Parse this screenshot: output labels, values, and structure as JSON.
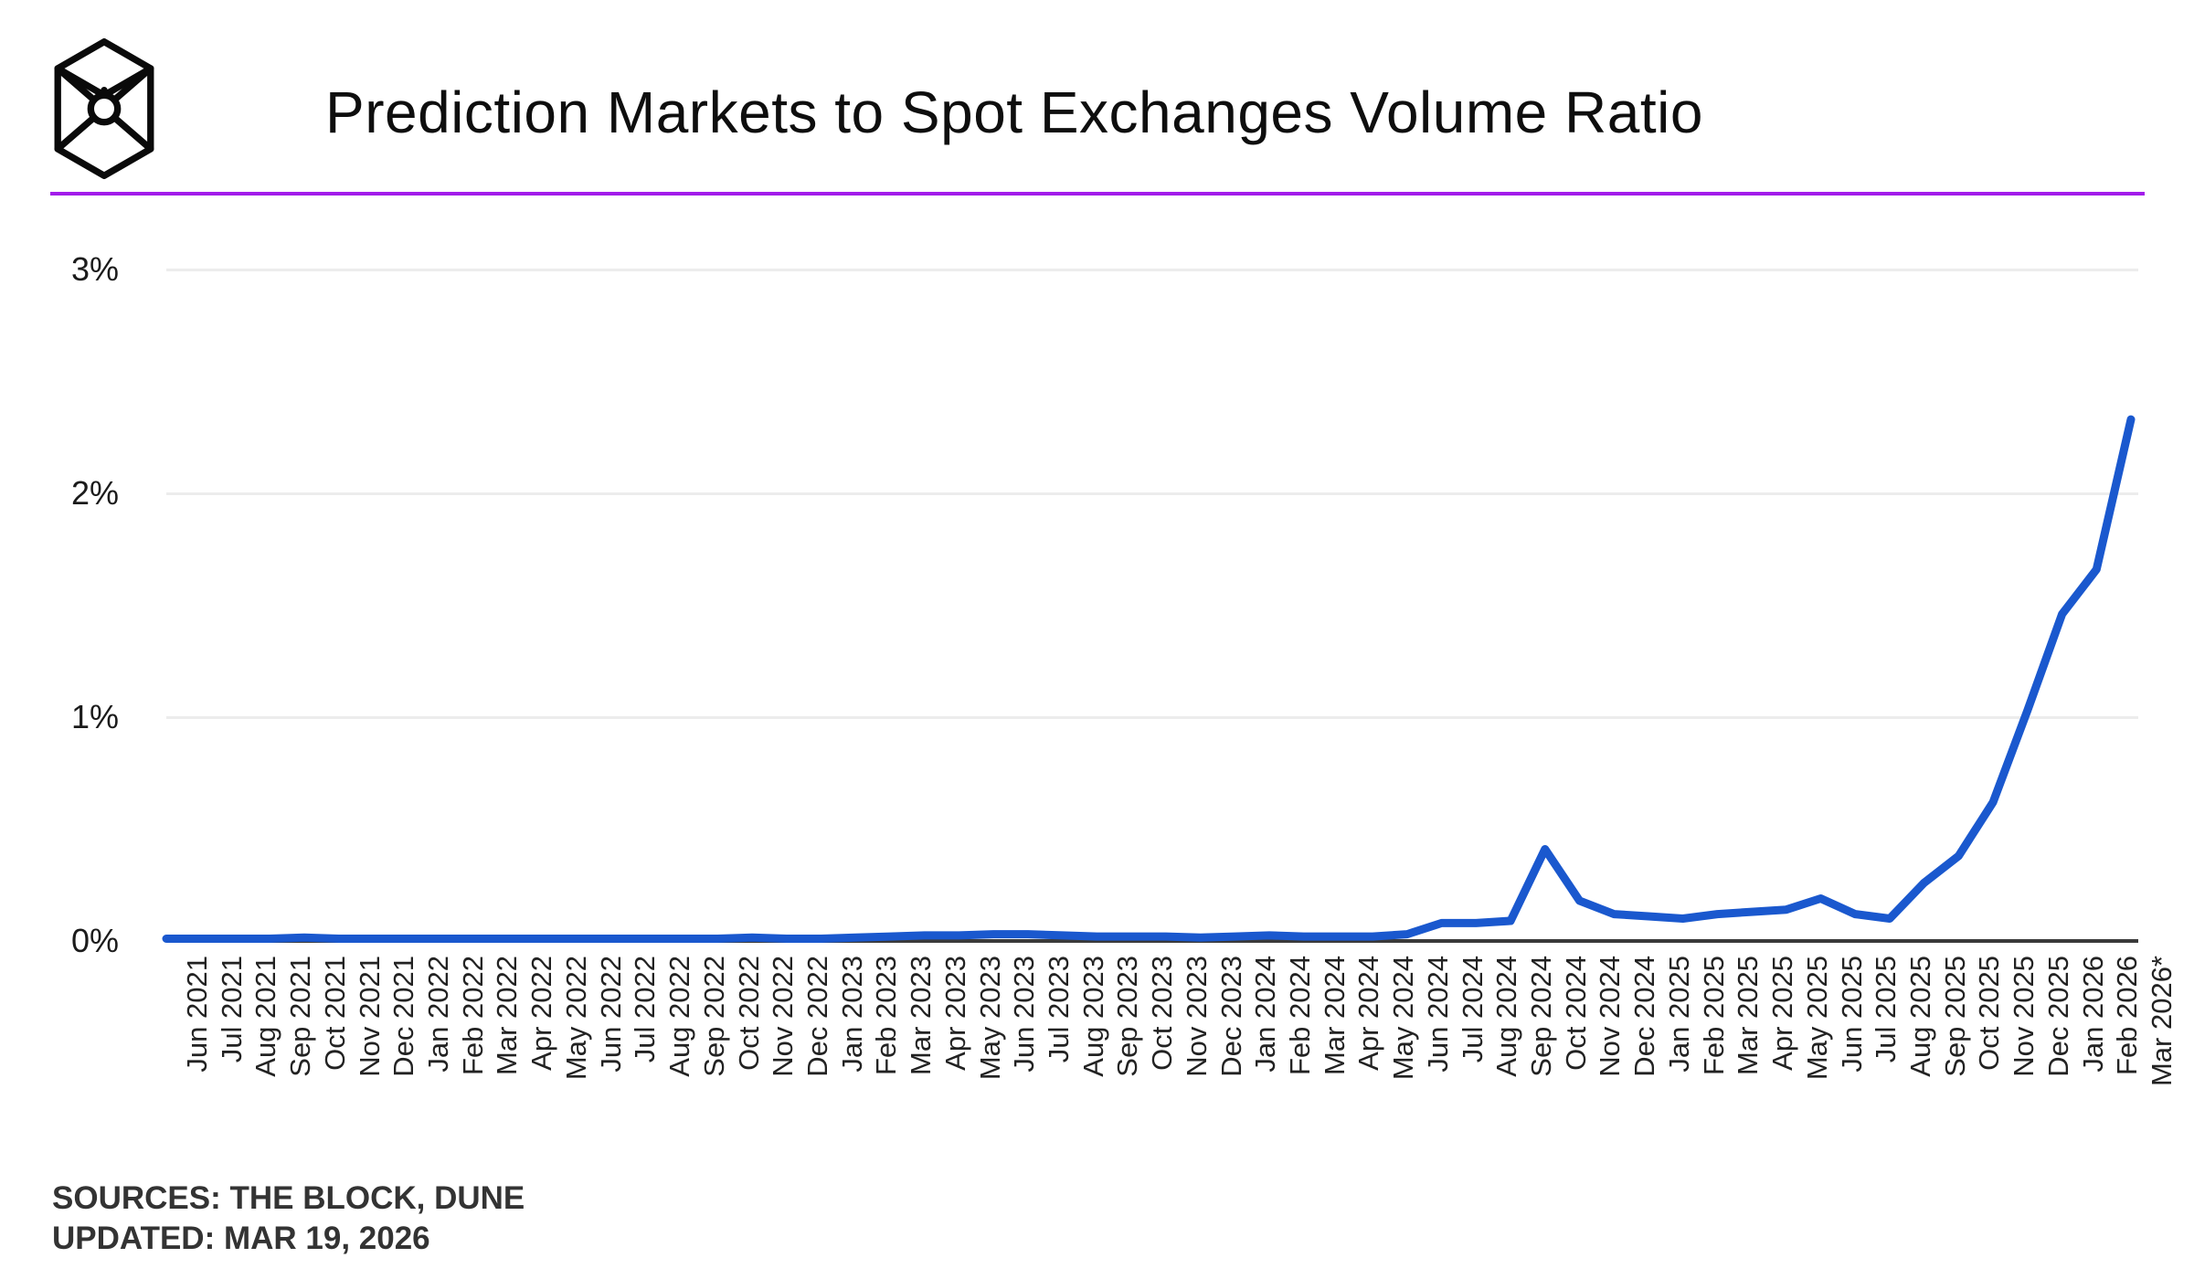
{
  "header": {
    "title": "Prediction Markets to Spot Exchanges Volume Ratio",
    "logo": "the-block-logo"
  },
  "accent_rule_color": "#A21CEA",
  "footer": {
    "sources": "SOURCES: THE BLOCK, DUNE",
    "updated": "UPDATED: MAR 19, 2026"
  },
  "chart_data": {
    "type": "line",
    "title": "Prediction Markets to Spot Exchanges Volume Ratio",
    "unit": "%",
    "line_color": "#1A58CE",
    "grid": true,
    "legend_position": "none",
    "ylim": [
      0,
      3.2
    ],
    "y_ticks": [
      {
        "label": "0%",
        "value": 0
      },
      {
        "label": "1%",
        "value": 1
      },
      {
        "label": "2%",
        "value": 2
      },
      {
        "label": "3%",
        "value": 3
      }
    ],
    "x": [
      "Jun 2021",
      "Jul 2021",
      "Aug 2021",
      "Sep 2021",
      "Oct 2021",
      "Nov 2021",
      "Dec 2021",
      "Jan 2022",
      "Feb 2022",
      "Mar 2022",
      "Apr 2022",
      "May 2022",
      "Jun 2022",
      "Jul 2022",
      "Aug 2022",
      "Sep 2022",
      "Oct 2022",
      "Nov 2022",
      "Dec 2022",
      "Jan 2023",
      "Feb 2023",
      "Mar 2023",
      "Apr 2023",
      "May 2023",
      "Jun 2023",
      "Jul 2023",
      "Aug 2023",
      "Sep 2023",
      "Oct 2023",
      "Nov 2023",
      "Dec 2023",
      "Jan 2024",
      "Feb 2024",
      "Mar 2024",
      "Apr 2024",
      "May 2024",
      "Jun 2024",
      "Jul 2024",
      "Aug 2024",
      "Sep 2024",
      "Oct 2024",
      "Nov 2024",
      "Dec 2024",
      "Jan 2025",
      "Feb 2025",
      "Mar 2025",
      "Apr 2025",
      "May 2025",
      "Jun 2025",
      "Jul 2025",
      "Aug 2025",
      "Sep 2025",
      "Oct 2025",
      "Nov 2025",
      "Dec 2025",
      "Jan 2026",
      "Feb 2026",
      "Mar 2026*"
    ],
    "values": [
      0.01,
      0.01,
      0.01,
      0.01,
      0.015,
      0.01,
      0.01,
      0.01,
      0.01,
      0.01,
      0.01,
      0.01,
      0.01,
      0.01,
      0.01,
      0.01,
      0.01,
      0.015,
      0.01,
      0.01,
      0.015,
      0.02,
      0.025,
      0.025,
      0.03,
      0.03,
      0.025,
      0.02,
      0.02,
      0.02,
      0.015,
      0.02,
      0.025,
      0.02,
      0.02,
      0.02,
      0.03,
      0.08,
      0.08,
      0.09,
      0.41,
      0.18,
      0.12,
      0.11,
      0.1,
      0.12,
      0.13,
      0.14,
      0.19,
      0.12,
      0.1,
      0.26,
      0.38,
      0.62,
      1.03,
      1.46,
      1.66,
      2.33
    ]
  }
}
